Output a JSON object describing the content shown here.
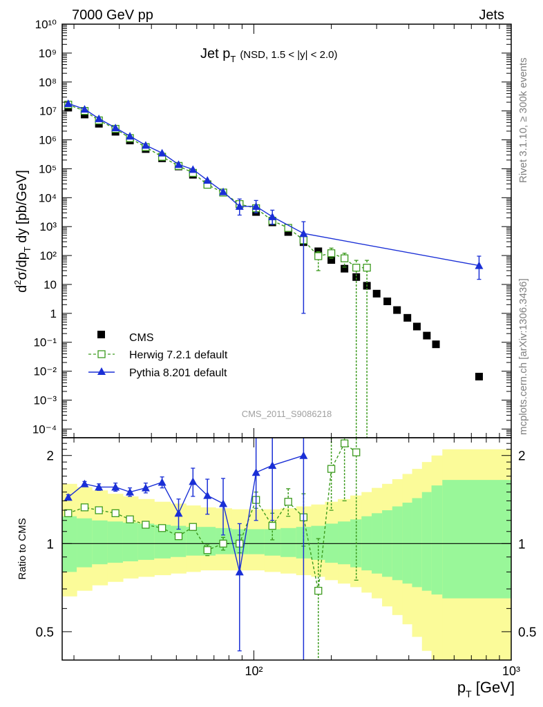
{
  "header": {
    "left": "7000 GeV pp",
    "right": "Jets"
  },
  "plot_title": {
    "main": "Jet p",
    "main_sub": "T",
    "cut": "(NSD, 1.5 < |y| < 2.0)"
  },
  "side_labels": {
    "rivet": "Rivet 3.1.10, ≥ 300k events",
    "source": "mcplots.cern.ch [arXiv:1306.3436]"
  },
  "watermark": "CMS_2011_S9086218",
  "axes": {
    "ylabel_top": "d²σ/dp_T dy [pb/GeV]",
    "ylabel_bottom": "Ratio to CMS",
    "xlabel": "p_T [GeV]"
  },
  "legend": {
    "cms": "CMS",
    "herwig": "Herwig 7.2.1 default",
    "pythia": "Pythia 8.201 default"
  },
  "colors": {
    "cms": "#000000",
    "herwig": "#3c9a1e",
    "pythia": "#1a2fd6",
    "band_inner": "#99f799",
    "band_outer": "#fbfb99"
  },
  "chart_data": [
    {
      "type": "scatter",
      "panel": "main",
      "xscale": "log",
      "yscale": "log",
      "xlim": [
        18,
        1000
      ],
      "ylim": [
        5e-05,
        10000000000.0
      ],
      "xlabel": "p_T [GeV]",
      "ylabel": "d²σ/dp_T dy [pb/GeV]",
      "x_ticks": [
        "10²",
        "10³"
      ],
      "y_ticks": [
        "10⁻⁴",
        "10⁻³",
        "10⁻²",
        "10⁻¹",
        "1",
        "10",
        "10²",
        "10³",
        "10⁴",
        "10⁵",
        "10⁶",
        "10⁷",
        "10⁸",
        "10⁹",
        "10¹⁰"
      ],
      "legend_position": "bottom-left",
      "series": [
        {
          "name": "CMS",
          "marker": "filled-square",
          "points": [
            [
              19,
              13000000.0
            ],
            [
              22,
              7500000.0
            ],
            [
              25,
              3600000.0
            ],
            [
              29,
              1900000.0
            ],
            [
              33,
              950000.0
            ],
            [
              38,
              480000.0
            ],
            [
              44,
              230000.0
            ],
            [
              51,
              120000.0
            ],
            [
              58,
              62000.0
            ],
            [
              66,
              29000.0
            ],
            [
              76,
              15000.0
            ],
            [
              88,
              6000.0
            ],
            [
              102,
              3200.0
            ],
            [
              118,
              1400.0
            ],
            [
              136,
              650
            ],
            [
              156,
              290
            ],
            [
              178,
              140
            ],
            [
              200,
              70
            ],
            [
              225,
              35
            ],
            [
              250,
              18
            ],
            [
              275,
              9.0
            ],
            [
              300,
              4.8
            ],
            [
              330,
              2.6
            ],
            [
              360,
              1.3
            ],
            [
              395,
              0.7
            ],
            [
              430,
              0.35
            ],
            [
              470,
              0.17
            ],
            [
              510,
              0.085
            ],
            [
              750,
              0.0065
            ]
          ]
        },
        {
          "name": "Herwig 7.2.1 default",
          "marker": "open-square",
          "line": "dashed",
          "points": [
            [
              19,
              16500000.0
            ],
            [
              22,
              10000000.0
            ],
            [
              25,
              4700000.0
            ],
            [
              29,
              2400000.0
            ],
            [
              33,
              1150000.0
            ],
            [
              38,
              560000.0
            ],
            [
              44,
              260000.0
            ],
            [
              51,
              125000.0
            ],
            [
              58,
              72000.0
            ],
            [
              66,
              28000.0
            ],
            [
              76,
              15000.0
            ],
            [
              88,
              6000.0
            ],
            [
              102,
              4300.0
            ],
            [
              118,
              1600.0
            ],
            [
              136,
              900
            ],
            [
              156,
              340
            ],
            [
              178,
              95
            ],
            [
              200,
              120
            ],
            [
              225,
              80
            ],
            [
              250,
              38
            ],
            [
              275,
              38
            ]
          ],
          "y_err_low": [
            0,
            0,
            0,
            0,
            0,
            0,
            0,
            0,
            0,
            0,
            0,
            0,
            0,
            0,
            0,
            0,
            65,
            40,
            40,
            38,
            38
          ],
          "y_err_high": [
            0,
            0,
            0,
            0,
            0,
            0,
            0,
            0,
            0,
            0,
            0,
            0,
            0,
            0,
            0,
            0,
            40,
            60,
            40,
            30,
            30
          ]
        },
        {
          "name": "Pythia 8.201 default",
          "marker": "filled-triangle",
          "line": "solid",
          "points": [
            [
              19,
              18000000.0
            ],
            [
              22,
              11500000.0
            ],
            [
              25,
              5400000.0
            ],
            [
              29,
              2600000.0
            ],
            [
              33,
              1350000.0
            ],
            [
              38,
              650000.0
            ],
            [
              44,
              350000.0
            ],
            [
              51,
              140000.0
            ],
            [
              58,
              95000.0
            ],
            [
              66,
              40000.0
            ],
            [
              76,
              16000.0
            ],
            [
              88,
              5000.0
            ],
            [
              102,
              5000.0
            ],
            [
              118,
              2200.0
            ],
            [
              156,
              580
            ],
            [
              750,
              45
            ]
          ],
          "y_err_low": [
            0,
            0,
            0,
            0,
            0,
            0,
            0,
            0,
            0,
            0,
            0,
            2500,
            2000,
            1000,
            579,
            30
          ],
          "y_err_high": [
            0,
            0,
            0,
            0,
            0,
            0,
            0,
            0,
            0,
            0,
            0,
            4000,
            3000,
            1500,
            900,
            50
          ]
        }
      ]
    },
    {
      "type": "scatter",
      "panel": "ratio",
      "xscale": "log",
      "yscale": "log",
      "xlim": [
        18,
        1000
      ],
      "ylim": [
        0.4,
        2.3
      ],
      "ylabel": "Ratio to CMS",
      "xlabel": "p_T [GeV]",
      "x_ticks": [
        "10²",
        "10³"
      ],
      "y_ticks": [
        "0.5",
        "1",
        "2"
      ],
      "reference_line": 1,
      "uncertainty_bands": {
        "x_edges": [
          18,
          20.5,
          23.5,
          27,
          31,
          35.5,
          41,
          47.5,
          54.5,
          62,
          71,
          82,
          95,
          110,
          127,
          146,
          167,
          189,
          212,
          237,
          262,
          287,
          315,
          345,
          378,
          412,
          450,
          490,
          540,
          1000
        ],
        "inner_low": [
          0.8,
          0.83,
          0.85,
          0.86,
          0.87,
          0.88,
          0.89,
          0.9,
          0.91,
          0.91,
          0.92,
          0.92,
          0.92,
          0.91,
          0.9,
          0.89,
          0.88,
          0.86,
          0.85,
          0.83,
          0.81,
          0.79,
          0.77,
          0.75,
          0.73,
          0.71,
          0.69,
          0.67,
          0.65
        ],
        "inner_high": [
          1.24,
          1.22,
          1.2,
          1.19,
          1.18,
          1.17,
          1.16,
          1.15,
          1.14,
          1.14,
          1.13,
          1.12,
          1.12,
          1.12,
          1.13,
          1.14,
          1.15,
          1.17,
          1.19,
          1.21,
          1.24,
          1.27,
          1.3,
          1.34,
          1.38,
          1.43,
          1.5,
          1.58,
          1.65
        ],
        "outer_low": [
          0.66,
          0.69,
          0.72,
          0.74,
          0.76,
          0.77,
          0.78,
          0.79,
          0.8,
          0.81,
          0.81,
          0.81,
          0.81,
          0.8,
          0.79,
          0.78,
          0.77,
          0.75,
          0.73,
          0.71,
          0.68,
          0.65,
          0.61,
          0.57,
          0.53,
          0.48,
          0.43,
          0.36,
          0.36
        ],
        "outer_high": [
          1.6,
          1.56,
          1.52,
          1.48,
          1.45,
          1.42,
          1.39,
          1.37,
          1.35,
          1.33,
          1.32,
          1.31,
          1.31,
          1.31,
          1.32,
          1.34,
          1.36,
          1.39,
          1.42,
          1.46,
          1.5,
          1.55,
          1.6,
          1.66,
          1.73,
          1.8,
          1.9,
          2.0,
          2.1
        ]
      },
      "series": [
        {
          "name": "Herwig 7.2.1 default",
          "marker": "open-square",
          "line": "dashed",
          "points": [
            [
              19,
              1.27
            ],
            [
              22,
              1.33
            ],
            [
              25,
              1.3
            ],
            [
              29,
              1.27
            ],
            [
              33,
              1.21
            ],
            [
              38,
              1.16
            ],
            [
              44,
              1.13
            ],
            [
              51,
              1.06
            ],
            [
              58,
              1.14
            ],
            [
              66,
              0.95
            ],
            [
              76,
              1.0
            ],
            [
              88,
              1.0
            ],
            [
              102,
              1.41
            ],
            [
              118,
              1.15
            ],
            [
              136,
              1.39
            ],
            [
              156,
              1.23
            ],
            [
              178,
              0.69
            ],
            [
              200,
              1.8
            ],
            [
              225,
              2.2
            ],
            [
              250,
              2.05
            ]
          ],
          "y_err": [
            0.02,
            0.02,
            0.02,
            0.02,
            0.02,
            0.02,
            0.02,
            0.02,
            0.03,
            0.04,
            0.05,
            0.07,
            0.09,
            0.12,
            0.15,
            0.25,
            0.35,
            0.5,
            0.8,
            1.3
          ]
        },
        {
          "name": "Pythia 8.201 default",
          "marker": "filled-triangle",
          "line": "solid",
          "points": [
            [
              19,
              1.44
            ],
            [
              22,
              1.6
            ],
            [
              25,
              1.56
            ],
            [
              29,
              1.56
            ],
            [
              33,
              1.5
            ],
            [
              38,
              1.55
            ],
            [
              44,
              1.62
            ],
            [
              51,
              1.27
            ],
            [
              58,
              1.63
            ],
            [
              66,
              1.46
            ],
            [
              76,
              1.37
            ],
            [
              88,
              0.8
            ],
            [
              102,
              1.75
            ],
            [
              118,
              1.85
            ],
            [
              156,
              2.0
            ]
          ],
          "y_err": [
            0.03,
            0.03,
            0.04,
            0.05,
            0.05,
            0.06,
            0.07,
            0.15,
            0.18,
            0.2,
            0.3,
            0.37,
            0.55,
            0.65,
            1.9
          ]
        }
      ]
    }
  ]
}
